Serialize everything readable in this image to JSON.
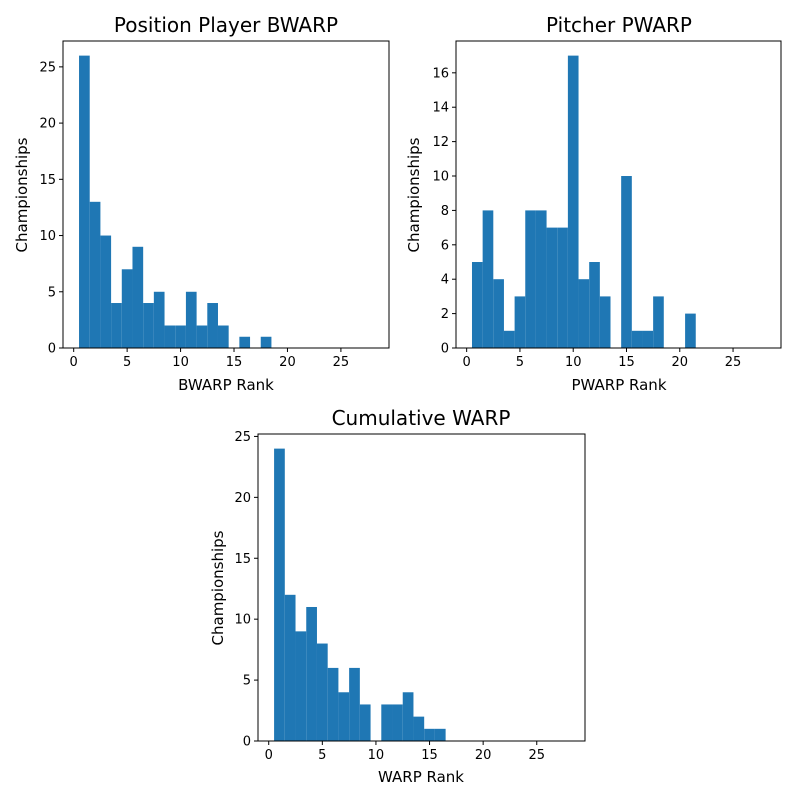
{
  "chart_data": [
    {
      "type": "bar",
      "title": "Position Player BWARP",
      "xlabel": "BWARP Rank",
      "ylabel": "Championships",
      "xlim": [
        -1,
        29.5
      ],
      "ylim": [
        0,
        27.3
      ],
      "xticks": [
        0,
        5,
        10,
        15,
        20,
        25
      ],
      "yticks": [
        0,
        5,
        10,
        15,
        20,
        25
      ],
      "grid": false,
      "bin_width": 1,
      "bins": [
        1,
        2,
        3,
        4,
        5,
        6,
        7,
        8,
        9,
        10,
        11,
        12,
        13,
        14,
        15,
        16,
        17,
        18,
        19,
        20,
        21,
        22,
        23,
        24,
        25,
        26,
        27,
        28
      ],
      "values": [
        26,
        13,
        10,
        4,
        7,
        9,
        4,
        5,
        2,
        2,
        5,
        2,
        4,
        2,
        0,
        1,
        0,
        1,
        0,
        0,
        0,
        0,
        0,
        0,
        0,
        0,
        0,
        0
      ],
      "color": "#1f77b4"
    },
    {
      "type": "bar",
      "title": "Pitcher PWARP",
      "xlabel": "PWARP Rank",
      "ylabel": "Championships",
      "xlim": [
        -1,
        29.5
      ],
      "ylim": [
        0,
        17.85
      ],
      "xticks": [
        0,
        5,
        10,
        15,
        20,
        25
      ],
      "yticks": [
        0,
        2,
        4,
        6,
        8,
        10,
        12,
        14,
        16
      ],
      "grid": false,
      "bin_width": 1,
      "bins": [
        1,
        2,
        3,
        4,
        5,
        6,
        7,
        8,
        9,
        10,
        11,
        12,
        13,
        14,
        15,
        16,
        17,
        18,
        19,
        20,
        21,
        22,
        23,
        24,
        25,
        26,
        27,
        28
      ],
      "values": [
        5,
        8,
        4,
        1,
        3,
        8,
        8,
        7,
        7,
        17,
        4,
        5,
        3,
        0,
        10,
        1,
        1,
        3,
        0,
        0,
        2,
        0,
        0,
        0,
        0,
        0,
        0,
        0
      ],
      "color": "#1f77b4"
    },
    {
      "type": "bar",
      "title": "Cumulative WARP",
      "xlabel": "WARP Rank",
      "ylabel": "Championships",
      "xlim": [
        -1,
        29.5
      ],
      "ylim": [
        0,
        25.2
      ],
      "xticks": [
        0,
        5,
        10,
        15,
        20,
        25
      ],
      "yticks": [
        0,
        5,
        10,
        15,
        20,
        25
      ],
      "grid": false,
      "bin_width": 1,
      "bins": [
        1,
        2,
        3,
        4,
        5,
        6,
        7,
        8,
        9,
        10,
        11,
        12,
        13,
        14,
        15,
        16,
        17,
        18,
        19,
        20,
        21,
        22,
        23,
        24,
        25,
        26,
        27,
        28
      ],
      "values": [
        24,
        12,
        9,
        11,
        8,
        6,
        4,
        6,
        3,
        0,
        3,
        3,
        4,
        2,
        1,
        1,
        0,
        0,
        0,
        0,
        0,
        0,
        0,
        0,
        0,
        0,
        0,
        0
      ],
      "color": "#1f77b4"
    }
  ]
}
